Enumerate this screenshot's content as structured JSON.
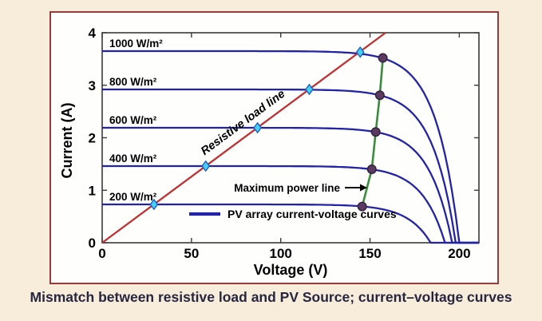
{
  "figure": {
    "caption": "Mismatch between resistive load and PV Source; current–voltage curves"
  },
  "chart_data": {
    "type": "line",
    "title": "",
    "xlabel": "Voltage (V)",
    "ylabel": "Current (A)",
    "xlim": [
      0,
      211
    ],
    "ylim": [
      0,
      4
    ],
    "xticks": [
      0,
      50,
      100,
      150,
      200
    ],
    "yticks": [
      0,
      1,
      2,
      3,
      4
    ],
    "grid": false,
    "legend": {
      "label": "PV array current-voltage curves",
      "position": "lower-left-inside"
    },
    "series": [
      {
        "label": "1000 W/m²",
        "irradiance_w_m2": 1000,
        "isc_a": 3.65,
        "voc_v": 200,
        "knee_v": 13
      },
      {
        "label": "800 W/m²",
        "irradiance_w_m2": 800,
        "isc_a": 2.92,
        "voc_v": 198,
        "knee_v": 13
      },
      {
        "label": "600 W/m²",
        "irradiance_w_m2": 600,
        "isc_a": 2.19,
        "voc_v": 196,
        "knee_v": 13
      },
      {
        "label": "400 W/m²",
        "irradiance_w_m2": 400,
        "isc_a": 1.46,
        "voc_v": 192,
        "knee_v": 13
      },
      {
        "label": "200 W/m²",
        "irradiance_w_m2": 200,
        "isc_a": 0.73,
        "voc_v": 184,
        "knee_v": 13
      }
    ],
    "load_line": {
      "label": "Resistive load line",
      "resistance_ohm": 39.7,
      "from_vi": [
        0,
        0
      ],
      "to_vi": [
        158.7,
        4.0
      ]
    },
    "operating_points_vi": [
      [
        29.0,
        0.73
      ],
      [
        58.0,
        1.46
      ],
      [
        87.0,
        2.19
      ],
      [
        116.0,
        2.92
      ],
      [
        144.5,
        3.63
      ]
    ],
    "max_power_line": {
      "label": "Maximum power line",
      "points_vi": [
        [
          145.6,
          0.69
        ],
        [
          151.0,
          1.4
        ],
        [
          153.2,
          2.11
        ],
        [
          155.5,
          2.81
        ],
        [
          157.2,
          3.52
        ]
      ]
    },
    "colors": {
      "pv_curve": "#2323a8",
      "load_line": "#c03030",
      "max_power_line": "#3a8c3a",
      "operating_marker_fill": "#45d0f0",
      "operating_marker_stroke": "#1b55c8",
      "mpp_marker_fill": "#5c3960",
      "mpp_marker_stroke": "#30203c",
      "axis": "#3a3a3a",
      "text": "#000000",
      "caption": "#262640",
      "figure_border": "#9a3b3b",
      "page_background": "#f8ecda"
    }
  }
}
